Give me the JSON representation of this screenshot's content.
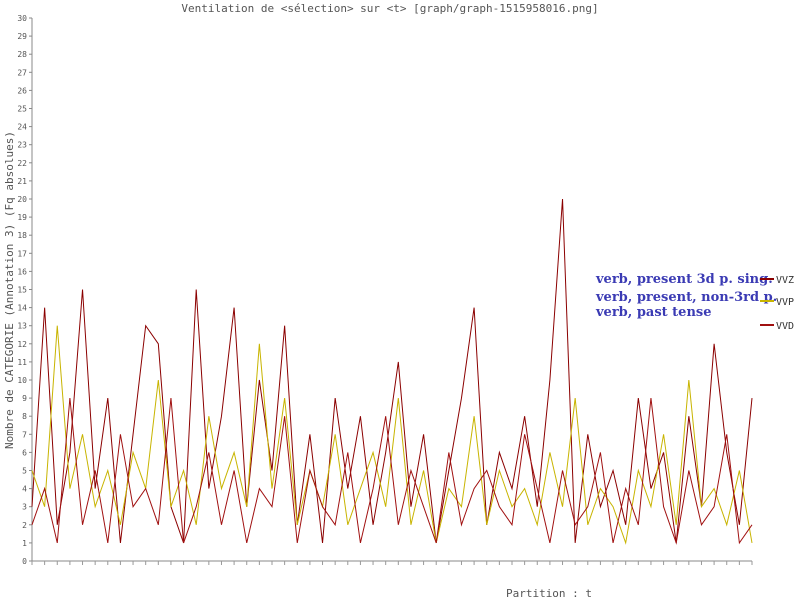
{
  "chart_data": {
    "type": "line",
    "title": "Ventilation de <sélection> sur <t> [graph/graph-1515958016.png]",
    "xlabel": "Partition : t",
    "ylabel": "Nombre de CATEGORIE (Annotation 3) (Fq absolues)",
    "ylim": [
      0,
      30
    ],
    "yticks": [
      "0",
      "1",
      "2",
      "3",
      "4",
      "5",
      "6",
      "7",
      "8",
      "9",
      "10",
      "11",
      "12",
      "13",
      "14",
      "15",
      "16",
      "17",
      "18",
      "19",
      "20",
      "21",
      "22",
      "23",
      "24",
      "25",
      "26",
      "27",
      "28",
      "29",
      "30"
    ],
    "grid": false,
    "legend_position": "right",
    "annotations": [
      "verb, present 3d p. sing.",
      "verb, present, non-3rd p.",
      "verb, past tense"
    ],
    "x": [
      1,
      8,
      15,
      22,
      29,
      36,
      43,
      50,
      57,
      64,
      71,
      78,
      85,
      92,
      99,
      106,
      113,
      120,
      127,
      134,
      141,
      148,
      155,
      162,
      169,
      176,
      183,
      190,
      197,
      204,
      211,
      218,
      225,
      232,
      239,
      246,
      253,
      260,
      267,
      274,
      281,
      288,
      295,
      302,
      309,
      316,
      323,
      330,
      337,
      344,
      351,
      358,
      365,
      372,
      379,
      386,
      393,
      400
    ],
    "series": [
      {
        "name": "VVZ",
        "color": "#8b0000",
        "values": [
          3,
          14,
          2,
          6,
          15,
          4,
          9,
          1,
          7,
          13,
          12,
          3,
          1,
          15,
          4,
          8,
          14,
          3,
          10,
          5,
          13,
          2,
          7,
          1,
          9,
          4,
          8,
          2,
          6,
          11,
          3,
          7,
          1,
          5,
          9,
          14,
          2,
          6,
          4,
          8,
          3,
          10,
          20,
          1,
          7,
          3,
          5,
          2,
          9,
          4,
          6,
          1,
          8,
          3,
          12,
          6,
          2,
          9
        ]
      },
      {
        "name": "VVP",
        "color": "#c8b400",
        "values": [
          5,
          3,
          13,
          4,
          7,
          3,
          5,
          2,
          6,
          4,
          10,
          3,
          5,
          2,
          8,
          4,
          6,
          3,
          12,
          4,
          9,
          2,
          5,
          3,
          7,
          2,
          4,
          6,
          3,
          9,
          2,
          5,
          1,
          4,
          3,
          8,
          2,
          5,
          3,
          4,
          2,
          6,
          3,
          9,
          2,
          4,
          3,
          1,
          5,
          3,
          7,
          2,
          10,
          3,
          4,
          2,
          5,
          1
        ]
      },
      {
        "name": "VVD",
        "color": "#a01010",
        "values": [
          2,
          4,
          1,
          9,
          2,
          5,
          1,
          7,
          3,
          4,
          2,
          9,
          1,
          3,
          6,
          2,
          5,
          1,
          4,
          3,
          8,
          1,
          5,
          3,
          2,
          6,
          1,
          4,
          8,
          2,
          5,
          3,
          1,
          6,
          2,
          4,
          5,
          3,
          2,
          7,
          4,
          1,
          5,
          2,
          3,
          6,
          1,
          4,
          2,
          9,
          3,
          1,
          5,
          2,
          3,
          7,
          1,
          2
        ]
      }
    ]
  }
}
